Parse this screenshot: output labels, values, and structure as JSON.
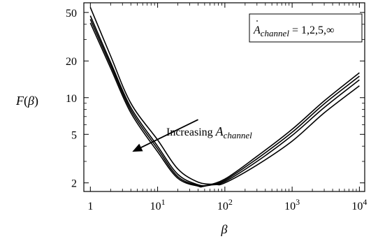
{
  "chart_data": {
    "type": "line",
    "xscale": "log",
    "yscale": "log",
    "xlim": [
      0.8,
      12000
    ],
    "ylim": [
      1.7,
      60
    ],
    "xlabel": "β",
    "ylabel": "F(β)",
    "xticks": [
      {
        "value": 1,
        "base": "1",
        "exp": ""
      },
      {
        "value": 10,
        "base": "10",
        "exp": "1"
      },
      {
        "value": 100,
        "base": "10",
        "exp": "2"
      },
      {
        "value": 1000,
        "base": "10",
        "exp": "3"
      },
      {
        "value": 10000,
        "base": "10",
        "exp": "4"
      }
    ],
    "yticks": [
      {
        "value": 2,
        "label": "2"
      },
      {
        "value": 5,
        "label": "5"
      },
      {
        "value": 10,
        "label": "10"
      },
      {
        "value": 20,
        "label": "20"
      },
      {
        "value": 50,
        "label": "50"
      }
    ],
    "legend": {
      "position": "top-right",
      "var": "A",
      "sub": "channel",
      "text": " = 1,2,5,∞"
    },
    "annotation": {
      "text": "Increasing ",
      "var": "A",
      "sub": "channel",
      "arrow_from": [
        40,
        6.6
      ],
      "arrow_to": [
        4.2,
        3.6
      ]
    },
    "series": [
      {
        "values": [
          [
            1,
            55
          ],
          [
            2,
            22
          ],
          [
            4,
            9.0
          ],
          [
            10,
            4.5
          ],
          [
            20,
            2.6
          ],
          [
            40,
            2.03
          ],
          [
            70,
            1.95
          ],
          [
            100,
            2.0
          ],
          [
            300,
            2.8
          ],
          [
            1000,
            4.4
          ],
          [
            3000,
            7.5
          ],
          [
            10000,
            12.5
          ]
        ]
      },
      {
        "values": [
          [
            1,
            47
          ],
          [
            2,
            19.5
          ],
          [
            4,
            8.3
          ],
          [
            10,
            4.0
          ],
          [
            20,
            2.35
          ],
          [
            40,
            1.93
          ],
          [
            60,
            1.92
          ],
          [
            100,
            2.05
          ],
          [
            300,
            3.0
          ],
          [
            1000,
            4.9
          ],
          [
            3000,
            8.3
          ],
          [
            10000,
            14.0
          ]
        ]
      },
      {
        "values": [
          [
            1,
            44
          ],
          [
            2,
            18.5
          ],
          [
            4,
            7.9
          ],
          [
            10,
            3.8
          ],
          [
            20,
            2.25
          ],
          [
            40,
            1.9
          ],
          [
            55,
            1.9
          ],
          [
            100,
            2.1
          ],
          [
            300,
            3.15
          ],
          [
            1000,
            5.2
          ],
          [
            3000,
            8.9
          ],
          [
            10000,
            15.0
          ]
        ]
      },
      {
        "values": [
          [
            1,
            41
          ],
          [
            2,
            17.5
          ],
          [
            4,
            7.5
          ],
          [
            10,
            3.6
          ],
          [
            20,
            2.18
          ],
          [
            40,
            1.88
          ],
          [
            50,
            1.89
          ],
          [
            100,
            2.15
          ],
          [
            300,
            3.3
          ],
          [
            1000,
            5.5
          ],
          [
            3000,
            9.4
          ],
          [
            10000,
            16.0
          ]
        ]
      }
    ]
  }
}
